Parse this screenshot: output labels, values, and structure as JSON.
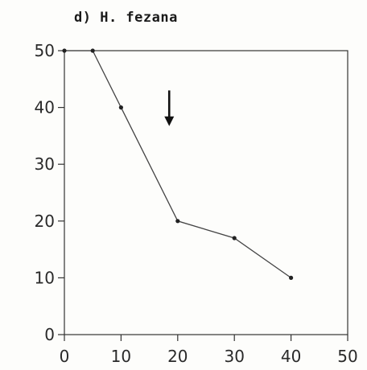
{
  "chart_data": {
    "type": "line",
    "title": "d) H. fezana",
    "xlabel": "",
    "ylabel": "",
    "xlim": [
      0,
      50
    ],
    "ylim": [
      0,
      50
    ],
    "xticks": [
      "0",
      "10",
      "20",
      "30",
      "40",
      "50"
    ],
    "yticks": [
      "0",
      "10",
      "20",
      "30",
      "40",
      "50"
    ],
    "grid": false,
    "series": [
      {
        "x": [
          0,
          5,
          10,
          20,
          30,
          40
        ],
        "y": [
          50,
          50,
          40,
          20,
          17,
          10
        ]
      }
    ],
    "annotations": [
      {
        "type": "arrow-down",
        "x": 18.5,
        "y_top": 43,
        "y_bottom": 37
      }
    ],
    "colors": {
      "line": "#444444",
      "axis": "#333333",
      "marker": "#222222"
    }
  }
}
